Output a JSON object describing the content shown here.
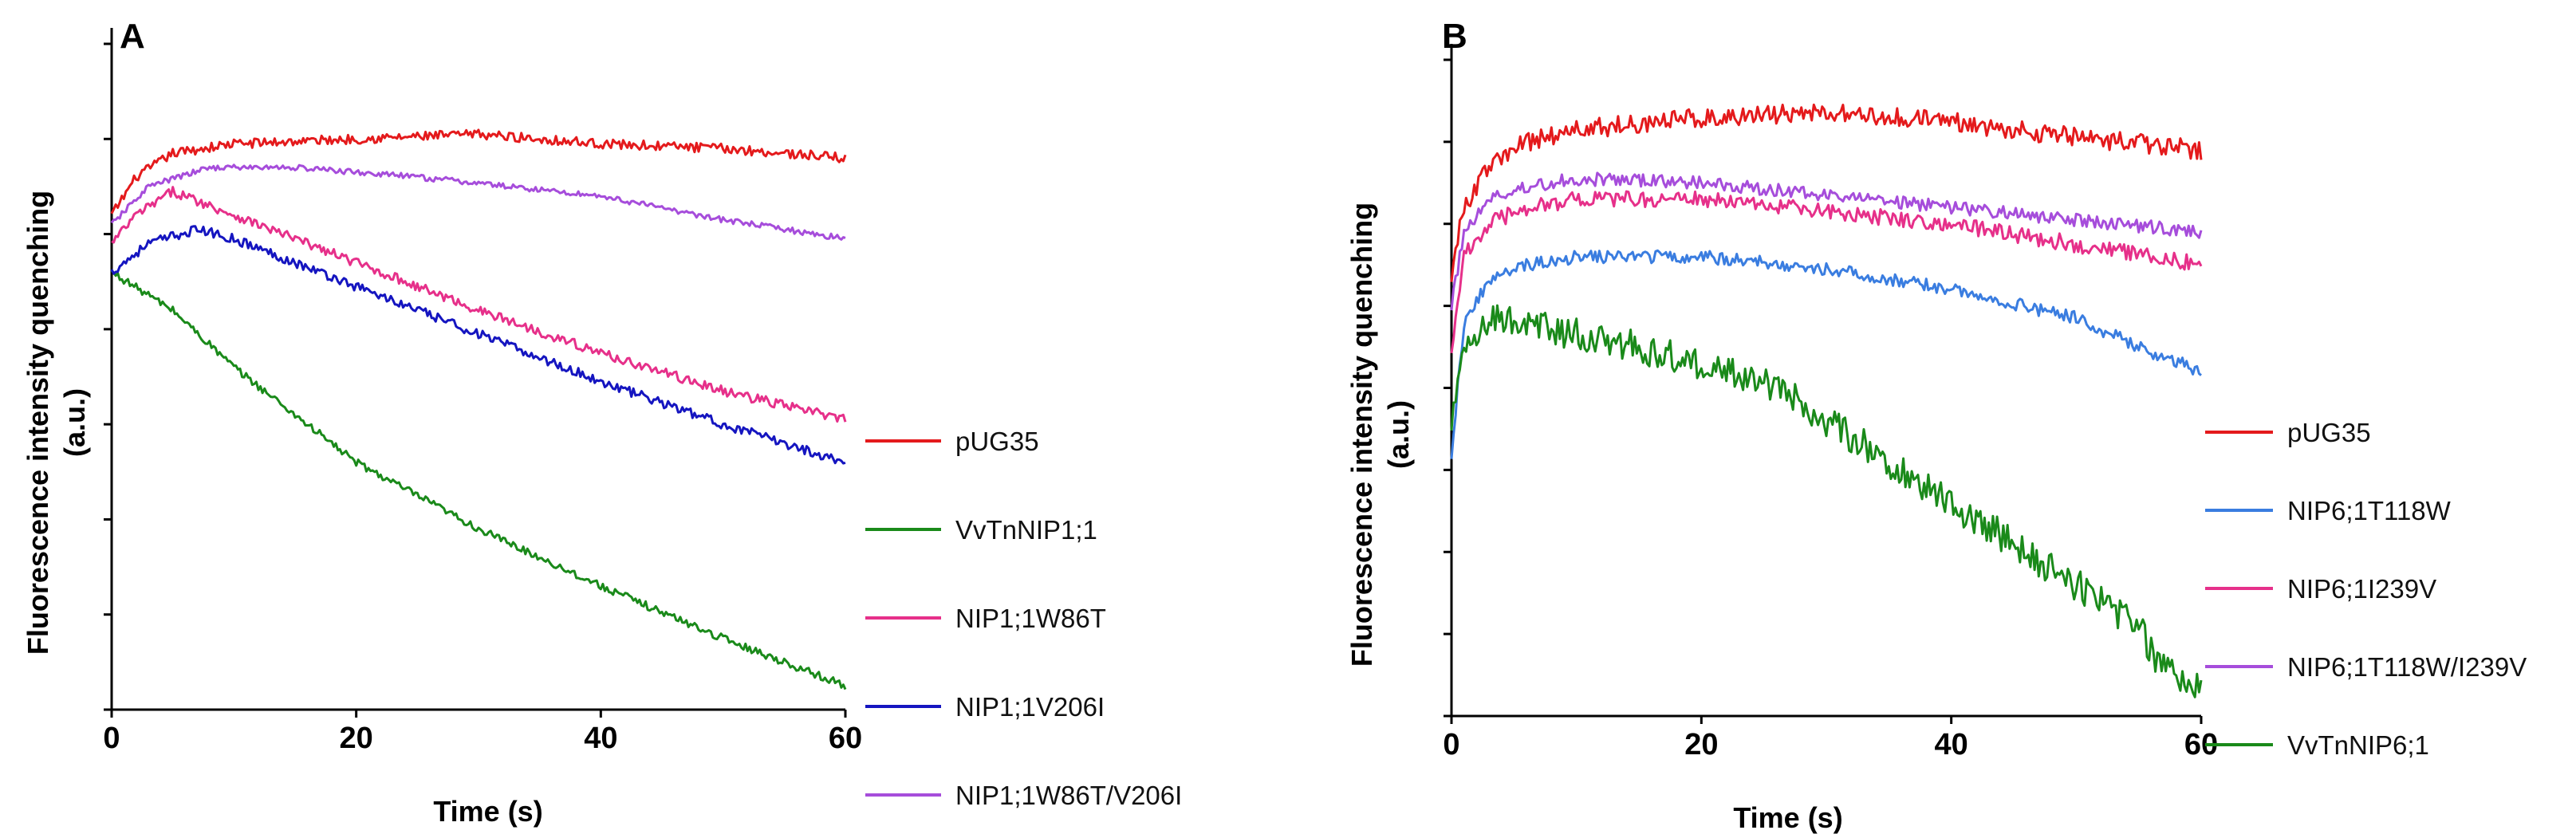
{
  "chart_data": [
    {
      "type": "line",
      "panel": "A",
      "xlabel": "Time (s)",
      "ylabel": "Fluorescence intensity quenching (a.u.)",
      "ylabel_lines": [
        "Fluorescence intensity quenching",
        "(a.u.)"
      ],
      "xlim": [
        0,
        60
      ],
      "xticks": [
        0,
        20,
        40,
        60
      ],
      "ylim": [
        0,
        7
      ],
      "yticks": [
        0,
        1,
        2,
        3,
        4,
        5,
        6,
        7
      ],
      "ytick_labels_shown": false,
      "legend_position": "right",
      "series": [
        {
          "name": "pUG35",
          "color": "#e41a1c",
          "noise": 0.05,
          "points": [
            [
              0,
              5.2
            ],
            [
              2,
              5.6
            ],
            [
              5,
              5.85
            ],
            [
              10,
              5.95
            ],
            [
              20,
              6.0
            ],
            [
              30,
              6.05
            ],
            [
              40,
              5.95
            ],
            [
              50,
              5.9
            ],
            [
              60,
              5.8
            ]
          ]
        },
        {
          "name": "VvTnNIP1;1",
          "color": "#1a8a1a",
          "noise": 0.04,
          "points": [
            [
              0,
              4.6
            ],
            [
              5,
              4.2
            ],
            [
              10,
              3.6
            ],
            [
              15,
              3.1
            ],
            [
              20,
              2.6
            ],
            [
              30,
              1.9
            ],
            [
              40,
              1.3
            ],
            [
              50,
              0.75
            ],
            [
              60,
              0.25
            ]
          ]
        },
        {
          "name": "NIP1;1W86T",
          "color": "#e6308a",
          "noise": 0.05,
          "points": [
            [
              0,
              4.9
            ],
            [
              2,
              5.2
            ],
            [
              5,
              5.45
            ],
            [
              10,
              5.2
            ],
            [
              20,
              4.7
            ],
            [
              30,
              4.2
            ],
            [
              40,
              3.75
            ],
            [
              50,
              3.35
            ],
            [
              60,
              3.05
            ]
          ]
        },
        {
          "name": "NIP1;1V206I",
          "color": "#1515c0",
          "noise": 0.05,
          "points": [
            [
              0,
              4.6
            ],
            [
              3,
              4.9
            ],
            [
              7,
              5.05
            ],
            [
              10,
              4.95
            ],
            [
              20,
              4.45
            ],
            [
              30,
              3.95
            ],
            [
              40,
              3.45
            ],
            [
              50,
              3.0
            ],
            [
              60,
              2.6
            ]
          ]
        },
        {
          "name": "NIP1;1W86T/V206I",
          "color": "#a64ddb",
          "noise": 0.03,
          "points": [
            [
              0,
              5.1
            ],
            [
              3,
              5.5
            ],
            [
              8,
              5.7
            ],
            [
              15,
              5.7
            ],
            [
              25,
              5.6
            ],
            [
              40,
              5.4
            ],
            [
              50,
              5.15
            ],
            [
              60,
              4.95
            ]
          ]
        }
      ]
    },
    {
      "type": "line",
      "panel": "B",
      "xlabel": "Time (s)",
      "ylabel": "Fluorescence intensity quenching (a.u.)",
      "ylabel_lines": [
        "Fluorescence intensity quenching",
        "(a.u.)"
      ],
      "xlim": [
        0,
        60
      ],
      "xticks": [
        0,
        20,
        40,
        60
      ],
      "ylim": [
        0,
        8
      ],
      "yticks": [
        0,
        1,
        2,
        3,
        4,
        5,
        6,
        7,
        8
      ],
      "ytick_labels_shown": false,
      "legend_position": "right",
      "series": [
        {
          "name": "pUG35",
          "color": "#e41a1c",
          "noise": 0.12,
          "points": [
            [
              0,
              5.4
            ],
            [
              1,
              6.2
            ],
            [
              3,
              6.7
            ],
            [
              6,
              7.0
            ],
            [
              10,
              7.15
            ],
            [
              20,
              7.3
            ],
            [
              30,
              7.35
            ],
            [
              40,
              7.25
            ],
            [
              50,
              7.05
            ],
            [
              60,
              6.9
            ]
          ]
        },
        {
          "name": "NIP6;1T118W",
          "color": "#3a7de0",
          "noise": 0.08,
          "points": [
            [
              0,
              3.2
            ],
            [
              1,
              4.8
            ],
            [
              3,
              5.3
            ],
            [
              6,
              5.5
            ],
            [
              10,
              5.6
            ],
            [
              20,
              5.6
            ],
            [
              30,
              5.45
            ],
            [
              40,
              5.2
            ],
            [
              50,
              4.85
            ],
            [
              55,
              4.5
            ],
            [
              60,
              4.2
            ]
          ]
        },
        {
          "name": "NIP6;1I239V",
          "color": "#e6308a",
          "noise": 0.1,
          "points": [
            [
              0,
              4.5
            ],
            [
              1,
              5.6
            ],
            [
              3,
              6.0
            ],
            [
              6,
              6.2
            ],
            [
              10,
              6.3
            ],
            [
              20,
              6.3
            ],
            [
              30,
              6.15
            ],
            [
              40,
              6.0
            ],
            [
              50,
              5.75
            ],
            [
              60,
              5.5
            ]
          ]
        },
        {
          "name": "NIP6;1T118W/I239V",
          "color": "#a64ddb",
          "noise": 0.08,
          "points": [
            [
              0,
              5.0
            ],
            [
              1,
              5.9
            ],
            [
              3,
              6.3
            ],
            [
              6,
              6.45
            ],
            [
              10,
              6.55
            ],
            [
              20,
              6.5
            ],
            [
              30,
              6.35
            ],
            [
              40,
              6.2
            ],
            [
              50,
              6.05
            ],
            [
              60,
              5.9
            ]
          ]
        },
        {
          "name": "VvTnNIP6;1",
          "color": "#1a8a1a",
          "noise": 0.2,
          "points": [
            [
              0,
              3.6
            ],
            [
              1,
              4.5
            ],
            [
              3,
              4.85
            ],
            [
              7,
              4.75
            ],
            [
              12,
              4.6
            ],
            [
              20,
              4.3
            ],
            [
              25,
              4.1
            ],
            [
              30,
              3.6
            ],
            [
              40,
              2.6
            ],
            [
              45,
              2.1
            ],
            [
              50,
              1.6
            ],
            [
              55,
              1.1
            ],
            [
              57,
              0.55
            ],
            [
              60,
              0.3
            ]
          ]
        }
      ]
    }
  ]
}
